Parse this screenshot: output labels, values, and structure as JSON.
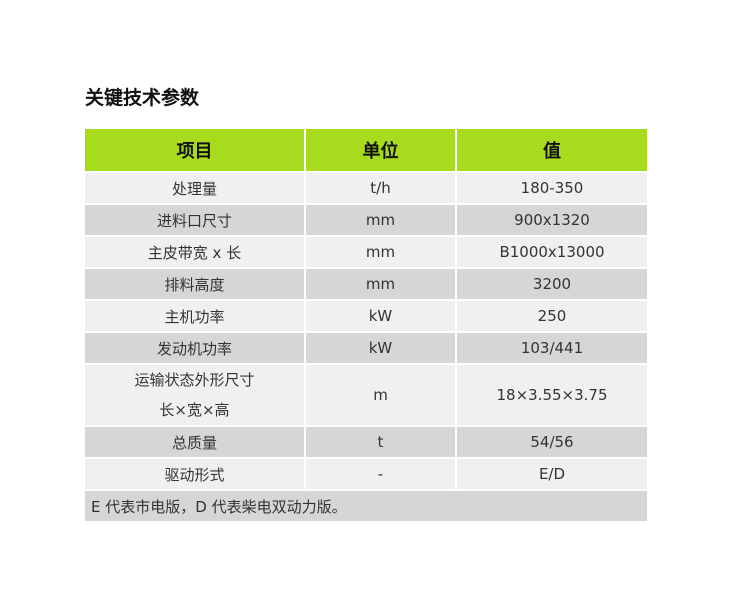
{
  "title": "关键技术参数",
  "headers": [
    "项目",
    "单位",
    "值"
  ],
  "rows": [
    {
      "item": "处理量",
      "unit": "t/h",
      "value": "180-350"
    },
    {
      "item": "进料口尺寸",
      "unit": "mm",
      "value": "900x1320"
    },
    {
      "item": "主皮带宽 x 长",
      "unit": "mm",
      "value": "B1000x13000"
    },
    {
      "item": "排料高度",
      "unit": "mm",
      "value": "3200"
    },
    {
      "item": "主机功率",
      "unit": "kW",
      "value": "250"
    },
    {
      "item": "发动机功率",
      "unit": "kW",
      "value": "103/441"
    },
    {
      "item": "运输状态外形尺寸",
      "item2": "长×宽×高",
      "unit": "m",
      "value": "18×3.55×3.75"
    },
    {
      "item": "总质量",
      "unit": "t",
      "value": "54/56"
    },
    {
      "item": "驱动形式",
      "unit": "-",
      "value": "E/D"
    }
  ],
  "note": "E 代表市电版，D 代表柴电双动力版。",
  "colors": {
    "header": "#a8da1e",
    "row_light": "#f0f0f0",
    "row_dark": "#d6d6d6"
  }
}
